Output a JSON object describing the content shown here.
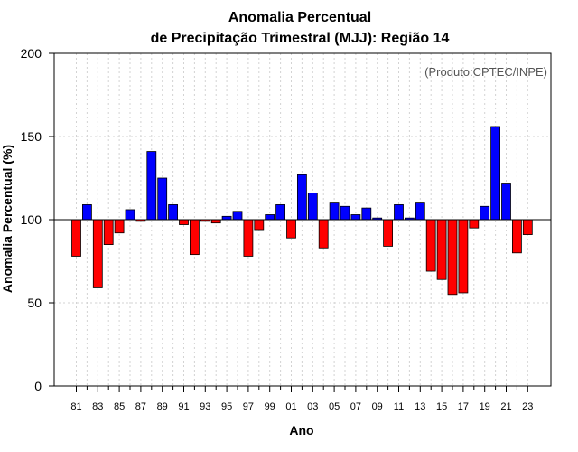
{
  "chart_data": {
    "type": "bar",
    "title_line1": "Anomalia Percentual",
    "title_line2": "de Precipitação Trimestral (MJJ): Região 14",
    "xlabel": "Ano",
    "ylabel": "Anomalia Percentual (%)",
    "annotation": "(Produto:CPTEC/INPE)",
    "ylim": [
      0,
      200
    ],
    "yticks": [
      0,
      50,
      100,
      150,
      200
    ],
    "baseline": 100,
    "colors": {
      "above": "#0000ff",
      "below": "#ff0000",
      "edge": "#000000",
      "grid": "#d3d3d3"
    },
    "categories": [
      "81",
      "82",
      "83",
      "84",
      "85",
      "86",
      "87",
      "88",
      "89",
      "90",
      "91",
      "92",
      "93",
      "94",
      "95",
      "96",
      "97",
      "98",
      "99",
      "00",
      "01",
      "02",
      "03",
      "04",
      "05",
      "06",
      "07",
      "08",
      "09",
      "10",
      "11",
      "12",
      "13",
      "14",
      "15",
      "16",
      "17",
      "18",
      "19",
      "20",
      "21",
      "22",
      "23"
    ],
    "xtick_labels": [
      "81",
      "83",
      "85",
      "87",
      "89",
      "91",
      "93",
      "95",
      "97",
      "99",
      "01",
      "03",
      "05",
      "07",
      "09",
      "11",
      "13",
      "15",
      "17",
      "19",
      "21",
      "23"
    ],
    "values": [
      78,
      109,
      59,
      85,
      92,
      106,
      99,
      141,
      125,
      109,
      97,
      79,
      99,
      98,
      102,
      105,
      78,
      94,
      103,
      109,
      89,
      127,
      116,
      83,
      110,
      108,
      103,
      107,
      101,
      84,
      109,
      101,
      110,
      69,
      64,
      55,
      56,
      95,
      108,
      156,
      122,
      80,
      91
    ]
  }
}
